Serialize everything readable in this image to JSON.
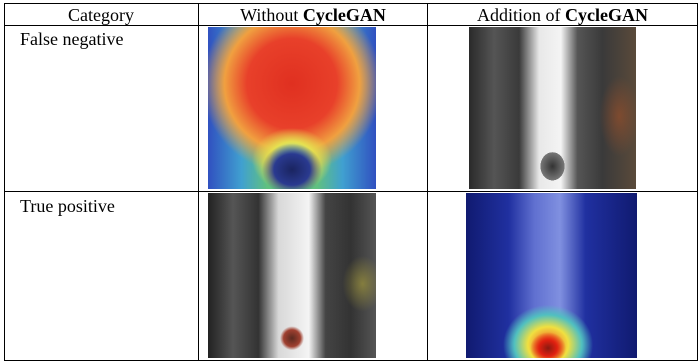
{
  "table": {
    "header": [
      "Category",
      [
        "Without",
        "CycleGAN"
      ],
      [
        "Addition of",
        "CycleGAN"
      ]
    ],
    "rows": [
      [
        "False negative"
      ],
      [
        "True positive"
      ]
    ]
  }
}
